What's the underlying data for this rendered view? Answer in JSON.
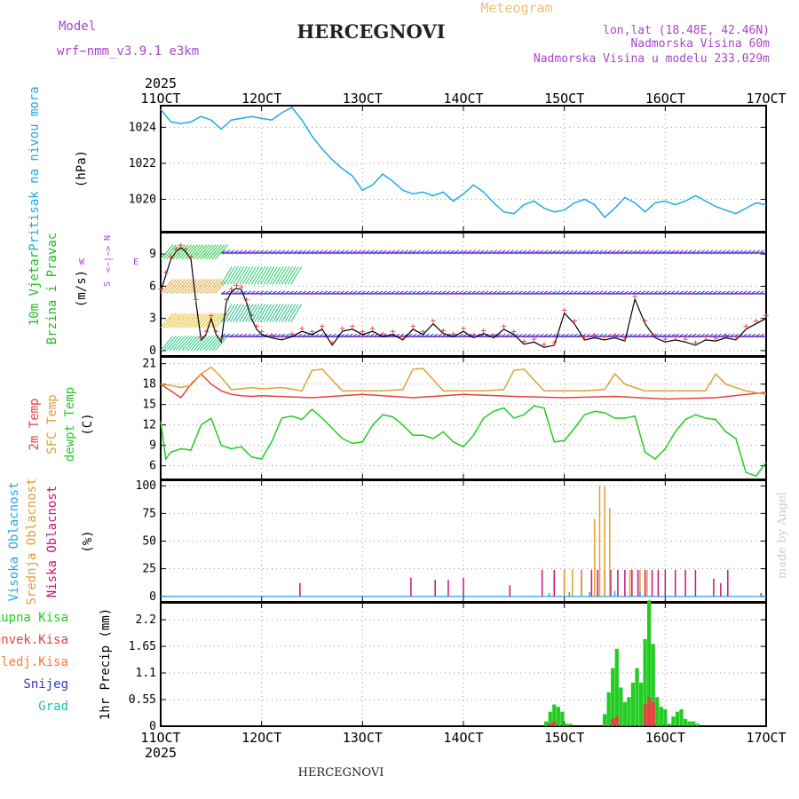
{
  "header": {
    "model_label": "Model",
    "model_name": "wrf−nmm_v3.9.1  e3km",
    "title": "HERCEGNOVI",
    "product": "Meteogram",
    "lonlat": "lon,lat (18.48E, 42.46N)",
    "altitude": "Nadmorska Visina 60m",
    "model_altitude": "Nadmorska Visina u modelu 233.029m"
  },
  "footer": {
    "station": "HERCEGNOVI",
    "credit": "made by Angel"
  },
  "colors": {
    "pressure": "#1fa8e8",
    "wind_label": "#22bb22",
    "wind_label2": "#22bb22",
    "temp2m": "#e84040",
    "sfc": "#e0a030",
    "dewpt": "#22cc22",
    "high_cloud": "#1fa8e8",
    "mid_cloud": "#e0a030",
    "low_cloud": "#cc1177",
    "total_precip": "#22cc22",
    "conv_precip": "#e84040",
    "frozen_precip": "#ff7733",
    "snow": "#3333cc",
    "graupel": "#22bbbb",
    "compass": "#aa44cc"
  },
  "chart_data": [
    {
      "type": "line",
      "panel": "pressure",
      "ylabel_left": "Pritisak na nivou mora",
      "unit": "(hPa)",
      "x_ticks": [
        "11OCT",
        "12OCT",
        "13OCT",
        "14OCT",
        "15OCT",
        "16OCT",
        "17OCT"
      ],
      "x_top_year": "2025",
      "x_bottom_year": "2025",
      "xlim_days": [
        11,
        17
      ],
      "ylim": [
        1018.2,
        1025.2
      ],
      "yticks": [
        1020,
        1022,
        1024
      ],
      "series": [
        {
          "name": "MSLP",
          "x": [
            11.0,
            11.1,
            11.2,
            11.3,
            11.4,
            11.5,
            11.6,
            11.7,
            11.8,
            11.9,
            12.0,
            12.1,
            12.2,
            12.3,
            12.4,
            12.5,
            12.6,
            12.7,
            12.8,
            12.9,
            13.0,
            13.1,
            13.2,
            13.3,
            13.4,
            13.5,
            13.6,
            13.7,
            13.8,
            13.9,
            14.0,
            14.1,
            14.2,
            14.3,
            14.4,
            14.5,
            14.6,
            14.7,
            14.8,
            14.9,
            15.0,
            15.1,
            15.2,
            15.3,
            15.4,
            15.5,
            15.6,
            15.7,
            15.8,
            15.9,
            16.0,
            16.1,
            16.2,
            16.3,
            16.4,
            16.5,
            16.6,
            16.7,
            16.8,
            16.9,
            17.0
          ],
          "y": [
            1025.0,
            1024.3,
            1024.2,
            1024.3,
            1024.6,
            1024.4,
            1023.9,
            1024.4,
            1024.5,
            1024.6,
            1024.5,
            1024.4,
            1024.8,
            1025.1,
            1024.4,
            1023.5,
            1022.8,
            1022.2,
            1021.7,
            1021.3,
            1020.5,
            1020.8,
            1021.4,
            1021.0,
            1020.5,
            1020.3,
            1020.4,
            1020.2,
            1020.4,
            1019.9,
            1020.3,
            1020.8,
            1020.4,
            1019.8,
            1019.3,
            1019.2,
            1019.7,
            1019.9,
            1019.5,
            1019.3,
            1019.4,
            1019.8,
            1020.0,
            1019.7,
            1019.0,
            1019.5,
            1020.1,
            1019.8,
            1019.3,
            1019.8,
            1019.9,
            1019.7,
            1019.9,
            1020.2,
            1019.9,
            1019.6,
            1019.4,
            1019.2,
            1019.5,
            1019.8,
            1019.7
          ]
        }
      ]
    },
    {
      "type": "line",
      "panel": "wind",
      "ylabel_left": "10m Vjetar",
      "ylabel_left2": "Brzina i Pravac",
      "unit": "(m/s)",
      "compass": {
        "north": "N",
        "south": "S",
        "west": "W",
        "east": "E",
        "arrows": "<−|−>"
      },
      "ylim": [
        -0.5,
        11
      ],
      "yticks": [
        0,
        3,
        6,
        9
      ],
      "series": [
        {
          "name": "wind speed",
          "x": [
            11.0,
            11.05,
            11.1,
            11.15,
            11.2,
            11.25,
            11.3,
            11.35,
            11.4,
            11.45,
            11.5,
            11.55,
            11.6,
            11.65,
            11.7,
            11.75,
            11.8,
            11.85,
            11.9,
            11.95,
            12.0,
            12.1,
            12.2,
            12.3,
            12.4,
            12.5,
            12.6,
            12.7,
            12.8,
            12.9,
            13.0,
            13.1,
            13.2,
            13.3,
            13.4,
            13.5,
            13.6,
            13.7,
            13.8,
            13.9,
            14.0,
            14.1,
            14.2,
            14.3,
            14.4,
            14.5,
            14.6,
            14.7,
            14.8,
            14.9,
            15.0,
            15.1,
            15.2,
            15.3,
            15.4,
            15.5,
            15.6,
            15.7,
            15.8,
            15.9,
            16.0,
            16.1,
            16.2,
            16.3,
            16.4,
            16.5,
            16.6,
            16.7,
            16.8,
            16.9,
            17.0
          ],
          "y": [
            5.5,
            7.0,
            8.5,
            9.2,
            9.6,
            9.2,
            8.5,
            4.5,
            1.0,
            1.5,
            3.0,
            1.5,
            0.8,
            4.5,
            5.5,
            5.8,
            5.7,
            4.5,
            3.0,
            2.0,
            1.5,
            1.2,
            1.0,
            1.3,
            1.8,
            1.5,
            2.0,
            0.5,
            1.8,
            2.0,
            1.5,
            1.8,
            1.3,
            1.5,
            1.0,
            2.0,
            1.5,
            2.5,
            1.6,
            1.3,
            1.8,
            1.2,
            1.6,
            1.2,
            2.0,
            1.5,
            0.6,
            0.8,
            0.3,
            0.5,
            3.5,
            2.5,
            1.0,
            1.2,
            1.0,
            1.2,
            0.9,
            4.8,
            2.5,
            1.2,
            0.8,
            1.0,
            0.8,
            0.5,
            1.0,
            0.9,
            1.2,
            1.0,
            2.0,
            2.5,
            3.0
          ]
        }
      ]
    },
    {
      "type": "line",
      "panel": "temperature",
      "ylabel_a": "2m Temp",
      "ylabel_b": "SFC Temp",
      "ylabel_c": "dewpt Temp",
      "unit": "(C)",
      "ylim": [
        4,
        22
      ],
      "yticks": [
        6,
        9,
        12,
        15,
        18,
        21
      ],
      "series": [
        {
          "name": "2m Temp",
          "x": [
            11.0,
            11.1,
            11.2,
            11.3,
            11.4,
            11.5,
            11.6,
            11.7,
            11.8,
            11.9,
            12.0,
            12.5,
            13.0,
            13.5,
            14.0,
            14.5,
            15.0,
            15.5,
            16.0,
            16.5,
            17.0
          ],
          "y": [
            18.0,
            17.0,
            16.0,
            18.0,
            19.5,
            18.0,
            17.0,
            16.5,
            16.3,
            16.2,
            16.3,
            16.0,
            16.5,
            16.0,
            16.5,
            16.2,
            16.0,
            16.2,
            15.8,
            16.0,
            16.8
          ]
        },
        {
          "name": "SFC Temp",
          "x": [
            11.0,
            11.1,
            11.2,
            11.3,
            11.4,
            11.5,
            11.6,
            11.7,
            11.8,
            11.9,
            12.0,
            12.2,
            12.4,
            12.5,
            12.6,
            12.8,
            13.0,
            13.2,
            13.4,
            13.5,
            13.6,
            13.8,
            14.0,
            14.2,
            14.4,
            14.5,
            14.6,
            14.8,
            15.0,
            15.2,
            15.4,
            15.5,
            15.6,
            15.8,
            16.0,
            16.2,
            16.4,
            16.5,
            16.6,
            16.8,
            17.0
          ],
          "y": [
            18.0,
            17.8,
            17.5,
            17.8,
            19.5,
            20.5,
            19.0,
            17.2,
            17.3,
            17.5,
            17.3,
            17.5,
            17.0,
            20.0,
            20.2,
            17.0,
            17.0,
            17.0,
            17.2,
            20.2,
            20.3,
            17.0,
            17.0,
            17.0,
            17.2,
            20.0,
            20.2,
            17.0,
            17.0,
            17.0,
            17.2,
            19.5,
            18.0,
            17.0,
            17.0,
            17.0,
            17.0,
            19.5,
            18.0,
            17.0,
            16.5
          ]
        },
        {
          "name": "dewpt Temp",
          "x": [
            11.0,
            11.05,
            11.1,
            11.2,
            11.3,
            11.4,
            11.5,
            11.6,
            11.7,
            11.8,
            11.9,
            12.0,
            12.1,
            12.2,
            12.3,
            12.4,
            12.5,
            12.6,
            12.7,
            12.8,
            12.9,
            13.0,
            13.1,
            13.2,
            13.3,
            13.4,
            13.5,
            13.6,
            13.7,
            13.8,
            13.9,
            14.0,
            14.1,
            14.2,
            14.3,
            14.4,
            14.5,
            14.6,
            14.7,
            14.8,
            14.9,
            15.0,
            15.1,
            15.2,
            15.3,
            15.4,
            15.5,
            15.6,
            15.7,
            15.8,
            15.9,
            16.0,
            16.1,
            16.2,
            16.3,
            16.4,
            16.5,
            16.6,
            16.7,
            16.8,
            16.9,
            17.0
          ],
          "y": [
            12.5,
            7.0,
            8.0,
            8.5,
            8.3,
            12.0,
            13.0,
            9.0,
            8.5,
            8.8,
            7.3,
            7.0,
            9.5,
            13.0,
            13.3,
            12.8,
            14.3,
            13.0,
            11.5,
            10.0,
            9.3,
            9.5,
            12.0,
            13.5,
            13.2,
            12.0,
            10.5,
            10.5,
            10.0,
            11.0,
            9.5,
            8.8,
            10.5,
            13.0,
            14.0,
            14.5,
            13.0,
            13.5,
            14.8,
            14.5,
            9.5,
            9.7,
            11.5,
            13.5,
            14.0,
            13.8,
            13.0,
            13.0,
            13.3,
            8.0,
            7.0,
            8.5,
            11.0,
            12.8,
            13.5,
            13.0,
            12.8,
            11.0,
            10.0,
            5.0,
            4.5,
            6.5
          ]
        }
      ]
    },
    {
      "type": "bar",
      "panel": "clouds",
      "ylabel_a": "Visoka Oblacnost",
      "ylabel_b": "Srednja Oblacnost",
      "ylabel_c": "Niska Oblacnost",
      "unit": "(%)",
      "ylim": [
        -5,
        105
      ],
      "yticks": [
        0,
        25,
        50,
        75,
        100
      ],
      "series": [
        {
          "name": "Niska Oblacnost",
          "x": [
            12.38,
            13.48,
            13.72,
            13.85,
            14.0,
            14.46,
            14.78,
            14.9,
            15.0,
            15.08,
            15.17,
            15.27,
            15.33,
            15.4,
            15.46,
            15.53,
            15.6,
            15.67,
            15.73,
            15.8,
            15.87,
            15.93,
            16.0,
            16.1,
            16.2,
            16.3,
            16.48,
            16.55,
            16.62,
            16.95
          ],
          "values": [
            12,
            17,
            15,
            15,
            17,
            10,
            24,
            24,
            24,
            24,
            24,
            24,
            24,
            24,
            24,
            24,
            24,
            24,
            24,
            24,
            24,
            24,
            24,
            24,
            24,
            24,
            16,
            12,
            24,
            3
          ]
        },
        {
          "name": "Srednja Oblacnost",
          "x": [
            15.0,
            15.08,
            15.17,
            15.3,
            15.35,
            15.4,
            15.45,
            15.65,
            15.75,
            15.82
          ],
          "values": [
            24,
            24,
            24,
            70,
            100,
            100,
            80,
            24,
            24,
            24
          ]
        },
        {
          "name": "Visoka Oblacnost",
          "x": [
            14.85,
            15.05,
            15.25,
            15.5,
            15.75
          ],
          "values": [
            3,
            4,
            4,
            5,
            4
          ]
        }
      ]
    },
    {
      "type": "bar",
      "panel": "precipitation",
      "legend": [
        "Ukupna Kisa",
        "Konvek.Kisa",
        "Zaledj.Kisa",
        "Snijeg",
        "Grad"
      ],
      "unit": "1hr Precip (mm)",
      "ylim": [
        0,
        2.55
      ],
      "yticks": [
        0,
        0.55,
        1.1,
        1.65,
        2.2
      ],
      "ytick_labels": [
        "0",
        "0.55",
        "1.1",
        "1.65",
        "2.2"
      ],
      "series": [
        {
          "name": "Ukupna Kisa",
          "x": [
            14.82,
            14.86,
            14.9,
            14.94,
            14.98,
            15.02,
            15.06,
            15.4,
            15.44,
            15.48,
            15.52,
            15.56,
            15.6,
            15.64,
            15.68,
            15.72,
            15.76,
            15.8,
            15.84,
            15.88,
            15.92,
            15.96,
            16.0,
            16.04,
            16.08,
            16.12,
            16.16,
            16.2,
            16.24,
            16.28,
            16.32
          ],
          "values": [
            0.1,
            0.3,
            0.45,
            0.4,
            0.3,
            0.05,
            0.05,
            0.25,
            0.7,
            1.2,
            1.6,
            0.8,
            0.5,
            0.6,
            0.9,
            1.2,
            0.9,
            1.8,
            2.6,
            1.7,
            0.6,
            0.4,
            0.35,
            0.05,
            0.2,
            0.3,
            0.35,
            0.15,
            0.1,
            0.1,
            0.05
          ]
        },
        {
          "name": "Konvek.Kisa",
          "x": [
            14.86,
            14.9,
            15.48,
            15.52,
            15.8,
            15.84,
            15.88
          ],
          "values": [
            0.05,
            0.1,
            0.15,
            0.2,
            0.45,
            0.6,
            0.5
          ]
        }
      ]
    }
  ]
}
